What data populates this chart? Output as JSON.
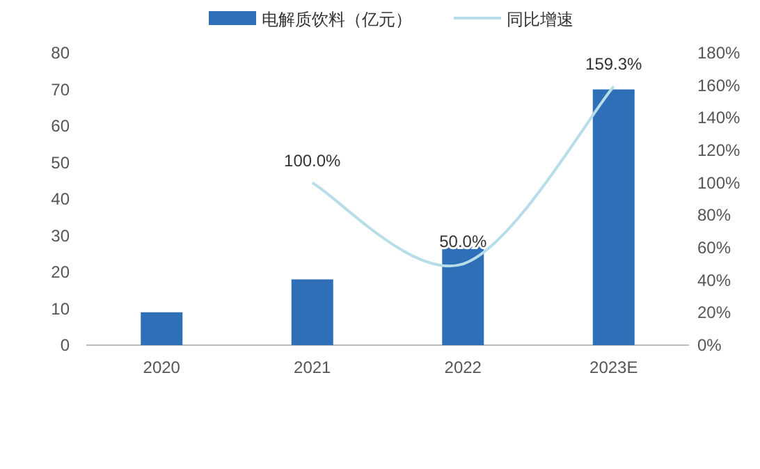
{
  "chart_data": {
    "type": "bar",
    "categories": [
      "2020",
      "2021",
      "2022",
      "2023E"
    ],
    "legend": "top",
    "ylim": [
      0,
      80
    ],
    "yticks": [
      0,
      10,
      20,
      30,
      40,
      50,
      60,
      70,
      80
    ],
    "y2lim": [
      0,
      180
    ],
    "y2ticks": [
      {
        "value": 0,
        "label": "0%"
      },
      {
        "value": 20,
        "label": "20%"
      },
      {
        "value": 40,
        "label": "40%"
      },
      {
        "value": 60,
        "label": "60%"
      },
      {
        "value": 80,
        "label": "80%"
      },
      {
        "value": 100,
        "label": "100%"
      },
      {
        "value": 120,
        "label": "120%"
      },
      {
        "value": 140,
        "label": "140%"
      },
      {
        "value": 160,
        "label": "160%"
      },
      {
        "value": 180,
        "label": "180%"
      }
    ],
    "series": [
      {
        "name": "电解质饮料（亿元）",
        "color": "#2e6fb7",
        "values": [
          9,
          18,
          27,
          70
        ]
      },
      {
        "name": "同比增速",
        "type": "line",
        "axis": "y2",
        "color": "#b7dde8",
        "values": [
          null,
          100,
          50,
          159.3
        ],
        "value_labels": [
          null,
          "100.0%",
          "50.0%",
          "159.3%"
        ]
      }
    ]
  }
}
